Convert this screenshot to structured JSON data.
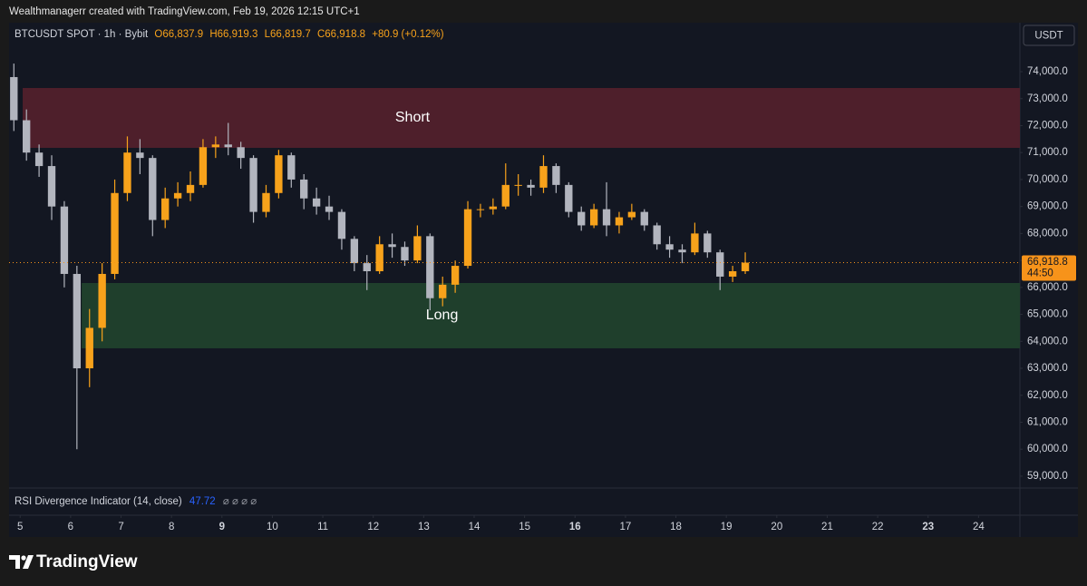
{
  "header": {
    "credit": "Wealthmanagerr created with TradingView.com, Feb 19, 2026 12:15 UTC+1"
  },
  "chart_data": {
    "type": "candlestick",
    "symbol": "BTCUSDT SPOT · 1h · Bybit",
    "ohlc_legend": [
      "O66,837.9",
      "H66,919.3",
      "L66,819.7",
      "C66,918.8",
      "+80.9 (+0.12%)"
    ],
    "currency": "USDT",
    "up_color": "#f7a21b",
    "down_color": "#b2b5be",
    "x": [
      4.75,
      5,
      5.25,
      5.5,
      5.75,
      6,
      6.25,
      6.5,
      6.75,
      7,
      7.25,
      7.5,
      7.75,
      8,
      8.25,
      8.5,
      8.75,
      9,
      9.25,
      9.5,
      9.75,
      10,
      10.25,
      10.5,
      10.75,
      11,
      11.25,
      11.5,
      11.75,
      12,
      12.25,
      12.5,
      12.75,
      13,
      13.25,
      13.5,
      13.75,
      14,
      14.25,
      14.5,
      14.75,
      15,
      15.25,
      15.5,
      15.75,
      16,
      16.25,
      16.5,
      16.75,
      17,
      17.25,
      17.5,
      17.75,
      18,
      18.25,
      18.5,
      18.75,
      19,
      19.25
    ],
    "open": [
      73800,
      72200,
      71000,
      70500,
      69000,
      66500,
      63000,
      64500,
      66500,
      69500,
      71000,
      70800,
      68500,
      69300,
      69500,
      69800,
      71200,
      71300,
      71200,
      70800,
      68800,
      69500,
      70900,
      70000,
      69300,
      69000,
      68800,
      67800,
      66900,
      66600,
      67600,
      67500,
      67000,
      67900,
      65600,
      66100,
      66800,
      68900,
      68900,
      69000,
      69800,
      69800,
      69700,
      70500,
      69800,
      68800,
      68300,
      68900,
      68300,
      68600,
      68800,
      68300,
      67600,
      67400,
      67300,
      68000,
      67300,
      66400,
      66600
    ],
    "high": [
      74300,
      72600,
      71300,
      70900,
      69200,
      66800,
      65200,
      66900,
      70000,
      71600,
      71500,
      70900,
      69700,
      69900,
      70300,
      71500,
      71600,
      72100,
      71400,
      70900,
      69800,
      71100,
      71000,
      70200,
      69700,
      69400,
      68900,
      67900,
      67200,
      67900,
      68000,
      67700,
      68300,
      68000,
      66400,
      67000,
      69200,
      69100,
      69300,
      70600,
      70200,
      70000,
      70900,
      70600,
      69900,
      69000,
      69100,
      69900,
      68800,
      69100,
      68900,
      68400,
      67900,
      67600,
      68400,
      68100,
      67400,
      66800,
      67300
    ],
    "low": [
      71800,
      70700,
      70100,
      68500,
      66000,
      60000,
      62300,
      64000,
      66300,
      69200,
      70200,
      67900,
      68200,
      69000,
      69200,
      69700,
      70800,
      70900,
      70400,
      68400,
      68600,
      69300,
      69700,
      68900,
      68700,
      68500,
      67400,
      66600,
      65900,
      66500,
      67100,
      66800,
      66900,
      65150,
      65300,
      65800,
      66700,
      68600,
      68700,
      68900,
      69400,
      69400,
      69500,
      69500,
      68600,
      68100,
      68200,
      67900,
      68000,
      68500,
      68100,
      67400,
      67100,
      66900,
      67200,
      67100,
      65900,
      66200,
      66500
    ],
    "close": [
      72200,
      71000,
      70500,
      69000,
      66500,
      63000,
      64500,
      66500,
      69500,
      71000,
      70800,
      68500,
      69300,
      69500,
      69800,
      71200,
      71300,
      71200,
      70800,
      68800,
      69500,
      70900,
      70000,
      69300,
      69000,
      68800,
      67800,
      66900,
      66600,
      67600,
      67500,
      67000,
      67900,
      65600,
      66100,
      66800,
      68900,
      68900,
      69000,
      69800,
      69800,
      69700,
      70500,
      69800,
      68800,
      68300,
      68900,
      68300,
      68600,
      68800,
      68300,
      67600,
      67400,
      67300,
      68000,
      67300,
      66400,
      66600,
      66918.8
    ],
    "zones": [
      {
        "label": "Short",
        "from": 5.05,
        "to": 24.82,
        "low": 71175,
        "high": 73395,
        "color": "#4e1f2b"
      },
      {
        "label": "Long",
        "from": 6.22,
        "to": 24.82,
        "low": 63741,
        "high": 66163,
        "color": "#1f3f2c"
      }
    ],
    "last_price": {
      "value": 66918.8,
      "label": "66,918.8",
      "countdown": "44:50",
      "color": "#f7931a"
    },
    "xlim": [
      4.78,
      24.82
    ],
    "xticks": [
      5,
      6,
      7,
      8,
      9,
      10,
      11,
      12,
      13,
      14,
      15,
      16,
      17,
      18,
      19,
      20,
      21,
      22,
      23,
      24
    ],
    "xticks_bold": [
      9,
      16,
      23
    ],
    "ylim": [
      58560,
      75750
    ],
    "yticks": [
      {
        "value": 59000,
        "label": "59,000.0"
      },
      {
        "value": 60000,
        "label": "60,000.0"
      },
      {
        "value": 61000,
        "label": "61,000.0"
      },
      {
        "value": 62000,
        "label": "62,000.0"
      },
      {
        "value": 63000,
        "label": "63,000.0"
      },
      {
        "value": 64000,
        "label": "64,000.0"
      },
      {
        "value": 65000,
        "label": "65,000.0"
      },
      {
        "value": 66000,
        "label": "66,000.0"
      },
      {
        "value": 67000,
        "label": "67,000.0"
      },
      {
        "value": 68000,
        "label": "68,000.0"
      },
      {
        "value": 69000,
        "label": "69,000.0"
      },
      {
        "value": 70000,
        "label": "70,000.0"
      },
      {
        "value": 71000,
        "label": "71,000.0"
      },
      {
        "value": 72000,
        "label": "72,000.0"
      },
      {
        "value": 73000,
        "label": "73,000.0"
      },
      {
        "value": 74000,
        "label": "74,000.0"
      }
    ],
    "grid": false,
    "indicator": {
      "name": "RSI Divergence Indicator (14, close)",
      "value": "47.72",
      "flags": "⌀ ⌀ ⌀ ⌀"
    }
  },
  "footer": {
    "brand": "TradingView"
  }
}
